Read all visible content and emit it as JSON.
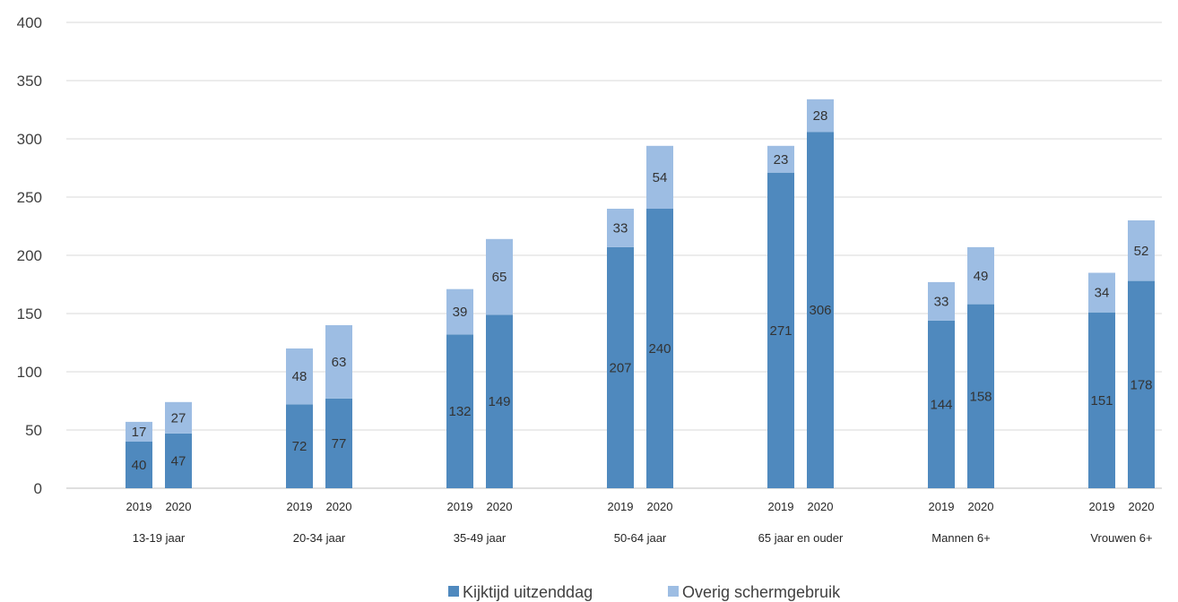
{
  "chart_data": {
    "type": "bar",
    "stacked": true,
    "groups": [
      "13-19 jaar",
      "20-34 jaar",
      "35-49 jaar",
      "50-64 jaar",
      "65 jaar en ouder",
      "Mannen 6+",
      "Vrouwen 6+"
    ],
    "years": [
      "2019",
      "2020"
    ],
    "series": [
      {
        "name": "Kijktijd uitzenddag",
        "color": "#4f89be",
        "values": [
          [
            40,
            47
          ],
          [
            72,
            77
          ],
          [
            132,
            149
          ],
          [
            207,
            240
          ],
          [
            271,
            306
          ],
          [
            144,
            158
          ],
          [
            151,
            178
          ]
        ]
      },
      {
        "name": "Overig schermgebruik",
        "color": "#9dbde3",
        "values": [
          [
            17,
            27
          ],
          [
            48,
            63
          ],
          [
            39,
            65
          ],
          [
            33,
            54
          ],
          [
            23,
            28
          ],
          [
            33,
            49
          ],
          [
            34,
            52
          ]
        ]
      }
    ],
    "ylim": [
      0,
      400
    ],
    "yticks": [
      0,
      50,
      100,
      150,
      200,
      250,
      300,
      350,
      400
    ],
    "grid": true,
    "legend_position": "bottom"
  }
}
